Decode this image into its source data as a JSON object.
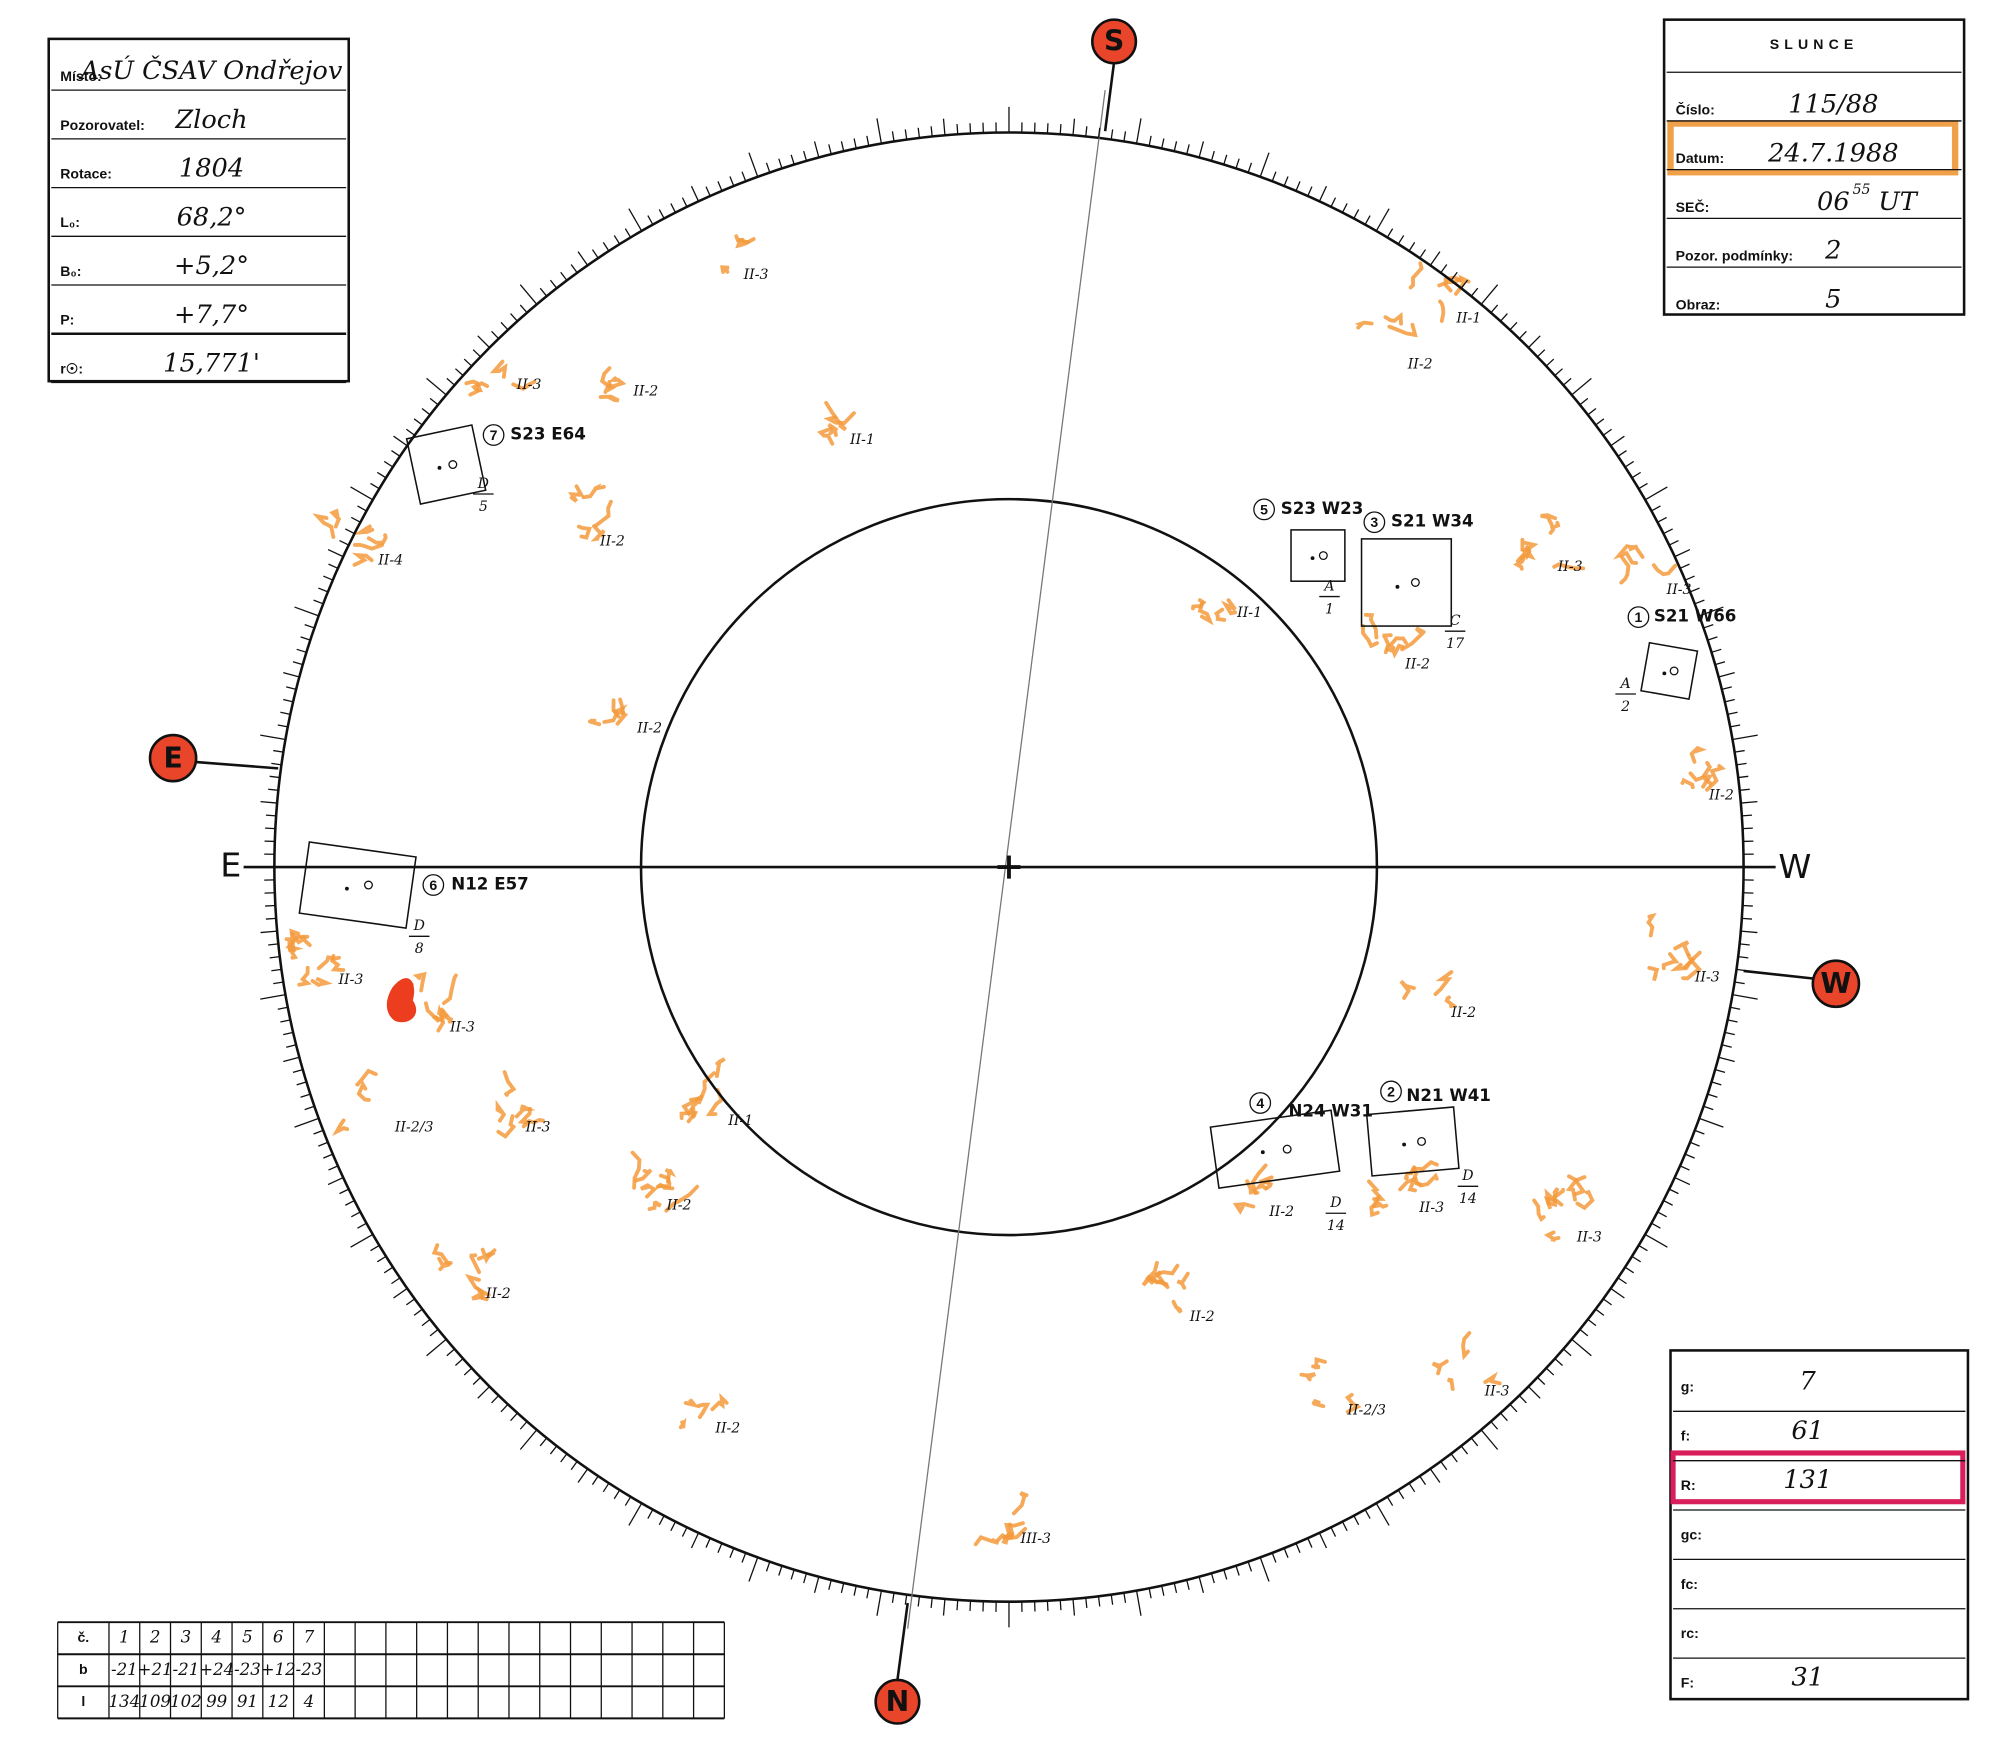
{
  "header_left": {
    "rows": [
      {
        "label": "Místo:",
        "value": "AsÚ ČSAV Ondřejov"
      },
      {
        "label": "Pozorovatel:",
        "value": "Zloch"
      },
      {
        "label": "Rotace:",
        "value": "1804"
      },
      {
        "label": "L₀:",
        "value": "68,2°"
      },
      {
        "label": "B₀:",
        "value": "+5,2°"
      },
      {
        "label": "P:",
        "value": "+7,7°"
      },
      {
        "label": "r☉:",
        "value": "15,771'"
      }
    ]
  },
  "header_right": {
    "title": "SLUNCE",
    "rows": [
      {
        "label": "Číslo:",
        "value": "115/88"
      },
      {
        "label": "Datum:",
        "value": "24.7.1988"
      },
      {
        "label": "SEČ:",
        "value": "06",
        "sup": "55",
        "suffix": "UT"
      },
      {
        "label": "Pozor. podmínky:",
        "value": "2"
      },
      {
        "label": "Obraz:",
        "value": "5"
      }
    ]
  },
  "directions": {
    "south": "S",
    "north": "N",
    "east": "E",
    "west": "W",
    "east_axis": "E",
    "west_axis": "W"
  },
  "groups": [
    {
      "number": "7",
      "position": "S23 E64",
      "class": "D",
      "count": "5"
    },
    {
      "number": "5",
      "position": "S23 W23",
      "class": "A",
      "count": "1"
    },
    {
      "number": "3",
      "position": "S21 W34",
      "class": "C",
      "count": "17"
    },
    {
      "number": "1",
      "position": "S21 W66",
      "class": "A",
      "count": "2"
    },
    {
      "number": "6",
      "position": "N12 E57",
      "class": "D",
      "count": "8"
    },
    {
      "number": "4",
      "position": "N24 W31",
      "class": "D",
      "count": "14"
    },
    {
      "number": "2",
      "position": "N21 W41",
      "class": "D",
      "count": "14"
    }
  ],
  "faculae": [
    "II-3",
    "II-1",
    "II-2",
    "II-3",
    "II-2",
    "II-1",
    "II-4",
    "II-2",
    "II-1",
    "II-3",
    "II-3",
    "II-2",
    "II-2",
    "II-2",
    "II-3",
    "II-3",
    "II-3",
    "II-2",
    "II-2/3",
    "II-3",
    "II-1",
    "II-2",
    "II-2",
    "II-3",
    "II-3",
    "II-2",
    "II-2",
    "II-2/3",
    "II-3",
    "II-2",
    "III-3"
  ],
  "summary": {
    "rows": [
      {
        "label": "g:",
        "value": "7"
      },
      {
        "label": "f:",
        "value": "61"
      },
      {
        "label": "R:",
        "value": "131"
      },
      {
        "label": "gc:",
        "value": ""
      },
      {
        "label": "fc:",
        "value": ""
      },
      {
        "label": "rc:",
        "value": ""
      },
      {
        "label": "F:",
        "value": "31"
      }
    ]
  },
  "table": {
    "rows": [
      [
        "č.",
        "1",
        "2",
        "3",
        "4",
        "5",
        "6",
        "7"
      ],
      [
        "b",
        "-21",
        "+21",
        "-21",
        "+24",
        "-23",
        "+12",
        "-23"
      ],
      [
        "l",
        "134",
        "109",
        "102",
        "99",
        "91",
        "12",
        "4"
      ]
    ]
  }
}
